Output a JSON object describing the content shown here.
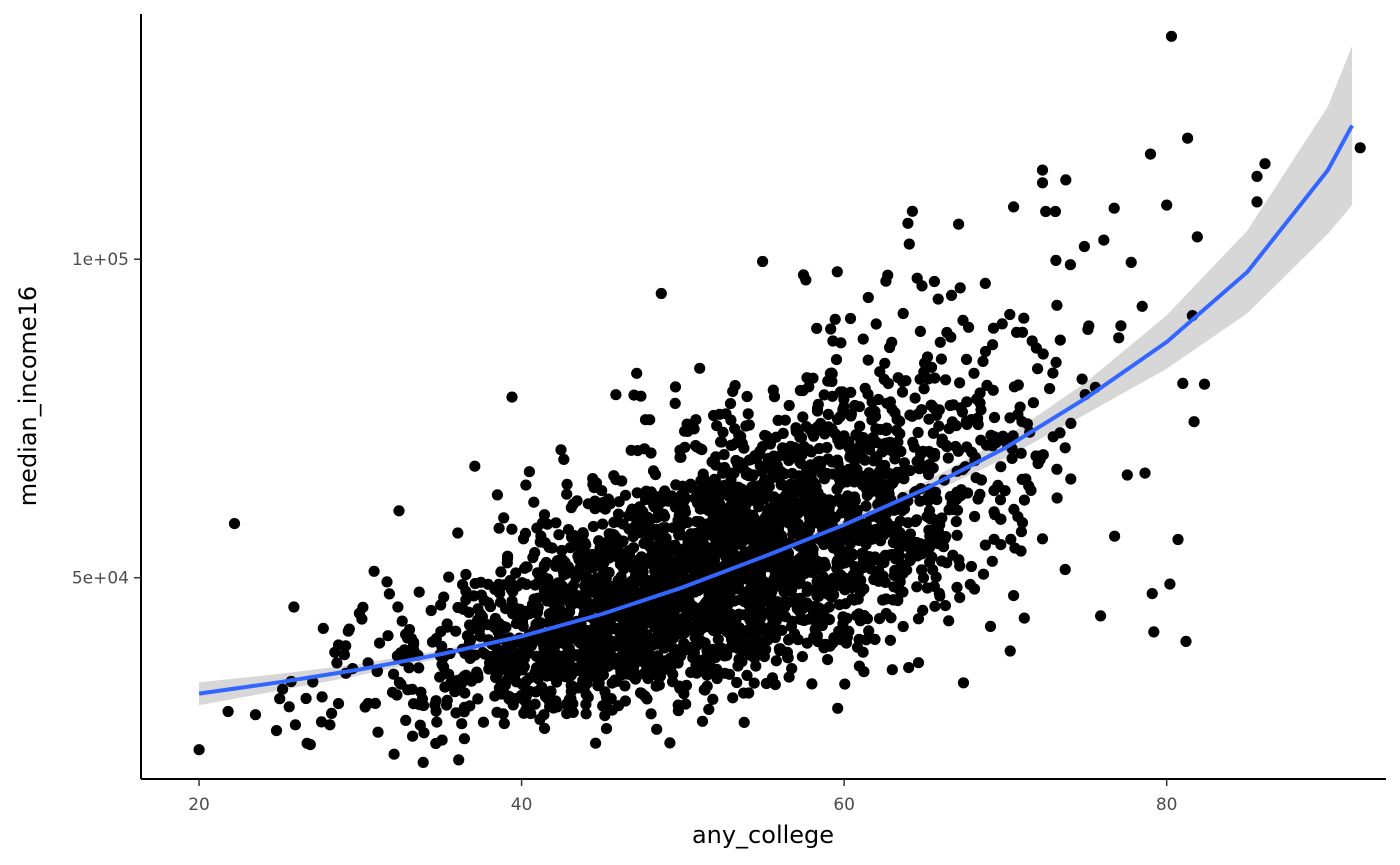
{
  "chart_data": {
    "type": "scatter",
    "title": "",
    "xlabel": "any_college",
    "ylabel": "median_income16",
    "xlim": [
      16.4,
      93.6
    ],
    "ylim": [
      18400,
      138500
    ],
    "x_ticks": [
      20,
      40,
      60,
      80
    ],
    "x_tick_labels": [
      "20",
      "40",
      "60",
      "80"
    ],
    "y_ticks": [
      50000,
      100000
    ],
    "y_tick_labels": [
      "5e+04",
      "1e+05"
    ],
    "grid": false,
    "legend": "none",
    "colors": {
      "points": "#000000",
      "smooth_line": "#3366FF",
      "ribbon": "#D3D3D3"
    },
    "point_count_approx": 3100,
    "points_note": "",
    "outliers": [
      {
        "x": 20.0,
        "y": 23000
      },
      {
        "x": 21.8,
        "y": 29000
      },
      {
        "x": 22.2,
        "y": 58500
      },
      {
        "x": 23.5,
        "y": 28500
      },
      {
        "x": 24.8,
        "y": 26000
      },
      {
        "x": 25.0,
        "y": 31000
      },
      {
        "x": 26.7,
        "y": 24000
      },
      {
        "x": 26.9,
        "y": 23800
      },
      {
        "x": 32.4,
        "y": 60500
      },
      {
        "x": 33.9,
        "y": 21000
      },
      {
        "x": 36.1,
        "y": 21400
      },
      {
        "x": 37.1,
        "y": 67500
      },
      {
        "x": 38.5,
        "y": 63000
      },
      {
        "x": 47.4,
        "y": 78500
      },
      {
        "x": 59.6,
        "y": 29500
      },
      {
        "x": 61.5,
        "y": 94000
      },
      {
        "x": 62.7,
        "y": 97500
      },
      {
        "x": 65.6,
        "y": 96500
      },
      {
        "x": 67.1,
        "y": 105500
      },
      {
        "x": 67.4,
        "y": 33500
      },
      {
        "x": 70.3,
        "y": 38500
      },
      {
        "x": 72.3,
        "y": 112000
      },
      {
        "x": 72.3,
        "y": 114000
      },
      {
        "x": 72.5,
        "y": 107500
      },
      {
        "x": 73.1,
        "y": 107500
      },
      {
        "x": 74.9,
        "y": 102000
      },
      {
        "x": 75.9,
        "y": 44000
      },
      {
        "x": 76.1,
        "y": 103000
      },
      {
        "x": 77.8,
        "y": 99500
      },
      {
        "x": 79.0,
        "y": 116500
      },
      {
        "x": 79.1,
        "y": 47500
      },
      {
        "x": 79.2,
        "y": 41500
      },
      {
        "x": 80.0,
        "y": 108500
      },
      {
        "x": 80.2,
        "y": 49000
      },
      {
        "x": 80.3,
        "y": 135000
      },
      {
        "x": 80.7,
        "y": 56000
      },
      {
        "x": 81.0,
        "y": 80500
      },
      {
        "x": 81.2,
        "y": 40000
      },
      {
        "x": 81.3,
        "y": 119000
      },
      {
        "x": 81.7,
        "y": 74500
      },
      {
        "x": 81.9,
        "y": 103500
      },
      {
        "x": 85.6,
        "y": 113000
      },
      {
        "x": 85.6,
        "y": 109000
      },
      {
        "x": 86.1,
        "y": 115000
      },
      {
        "x": 92.0,
        "y": 117500
      }
    ],
    "smooth": {
      "x": [
        20,
        25,
        30,
        35,
        40,
        45,
        50,
        55,
        60,
        65,
        70,
        75,
        80,
        85,
        90,
        91.5
      ],
      "y": [
        31800,
        33600,
        35600,
        38000,
        40800,
        44300,
        48500,
        53300,
        58300,
        63900,
        70400,
        78200,
        87000,
        98000,
        114000,
        121000
      ],
      "lower": [
        30000,
        32300,
        34700,
        37400,
        40300,
        43800,
        48000,
        52700,
        57500,
        62800,
        68800,
        75700,
        82800,
        91500,
        104000,
        108500
      ],
      "upper": [
        33600,
        34900,
        36500,
        38600,
        41300,
        44800,
        49000,
        53900,
        59100,
        65000,
        72000,
        80700,
        91200,
        104500,
        124000,
        133500
      ]
    }
  }
}
